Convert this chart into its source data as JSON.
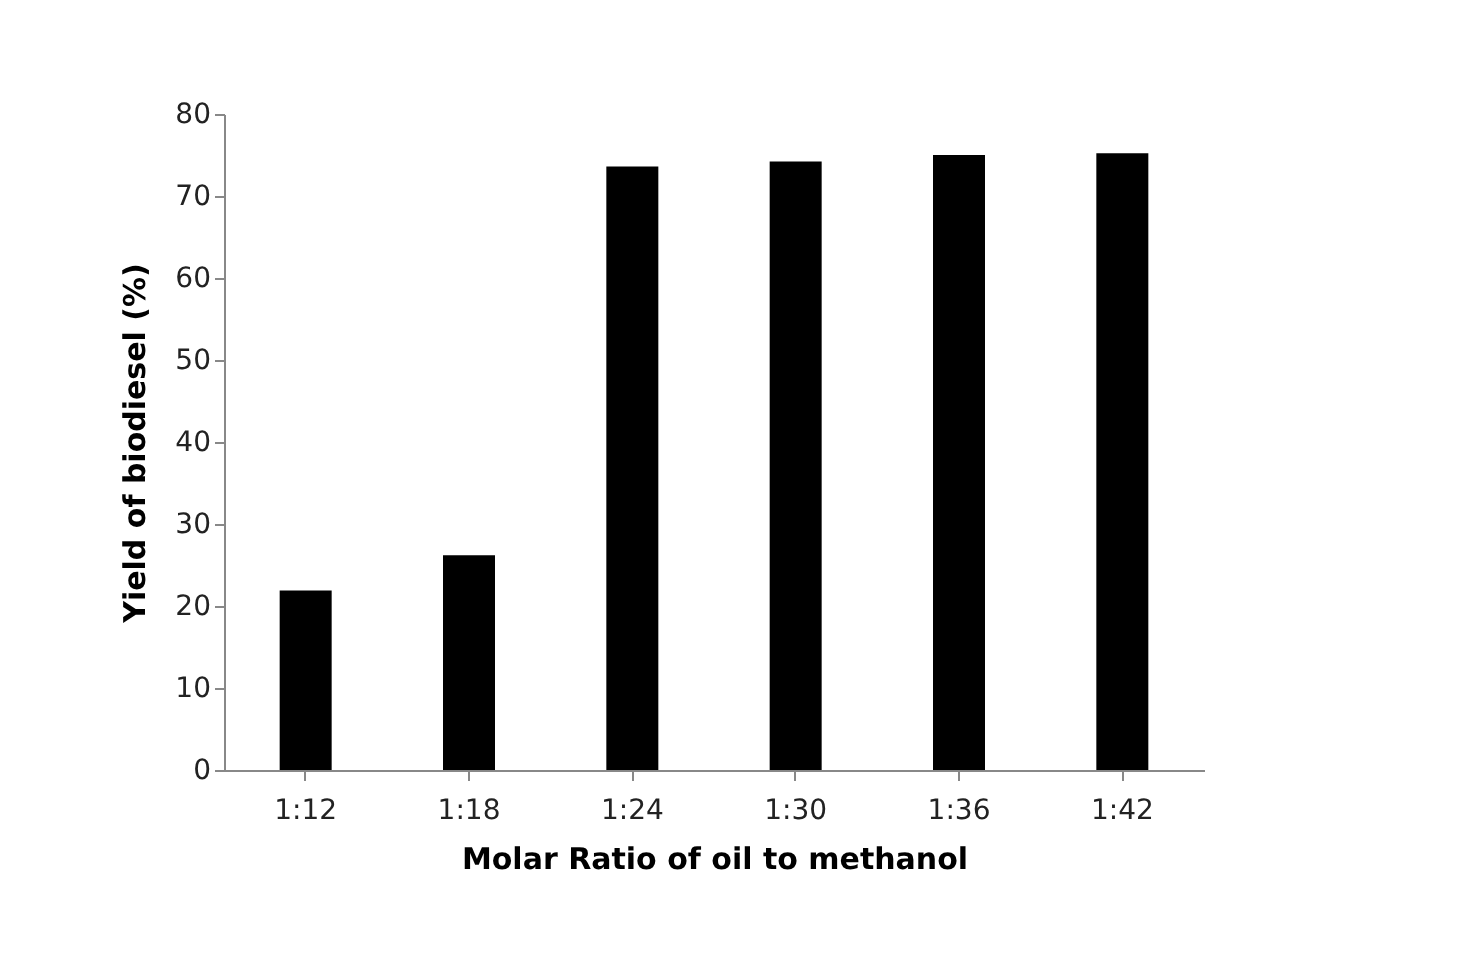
{
  "chart_data": {
    "type": "bar",
    "xlabel": "Molar Ratio of oil to methanol",
    "ylabel": "Yield of biodiesel (%)",
    "categories": [
      "1:12",
      "1:18",
      "1:24",
      "1:30",
      "1:36",
      "1:42"
    ],
    "values": [
      21.9,
      26.2,
      73.6,
      74.2,
      75.0,
      75.2
    ],
    "color": "#000000",
    "ylim": [
      0,
      80
    ],
    "yticks": [
      0,
      10,
      20,
      30,
      40,
      50,
      60,
      70,
      80
    ],
    "grid": false
  }
}
